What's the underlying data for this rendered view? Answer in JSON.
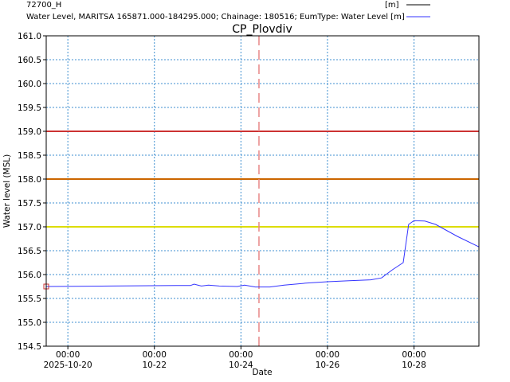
{
  "chart_data": {
    "type": "line",
    "title": "CP_Plovdiv",
    "xlabel": "Date",
    "ylabel": "Water level (MSL)",
    "grid": true,
    "legend_position": "top-right",
    "legend": [
      {
        "label": "72700_H",
        "unit": "[m]",
        "color": "#000000"
      },
      {
        "label": "Water Level, MARITSA 165871.000-184295.000; Chainage: 180516; EumType: Water Level [m]",
        "unit": "",
        "color": "#3333ff"
      }
    ],
    "xlim": [
      "2025-10-19T12:00",
      "2025-10-29T12:00"
    ],
    "ylim": [
      154.5,
      161.0
    ],
    "y_ticks": [
      "154.5",
      "155.0",
      "155.5",
      "156.0",
      "156.5",
      "157.0",
      "157.5",
      "158.0",
      "158.5",
      "159.0",
      "159.5",
      "160.0",
      "160.5",
      "161.0"
    ],
    "x_ticks": [
      {
        "date": "2025-10-20",
        "time": "00:00",
        "label": "2025-10-20"
      },
      {
        "date": "2025-10-22",
        "time": "00:00",
        "label": "10-22"
      },
      {
        "date": "2025-10-24",
        "time": "00:00",
        "label": "10-24"
      },
      {
        "date": "2025-10-26",
        "time": "00:00",
        "label": "10-26"
      },
      {
        "date": "2025-10-28",
        "time": "00:00",
        "label": "10-28"
      }
    ],
    "threshold_lines": [
      {
        "y": 159.0,
        "color": "#cc3333"
      },
      {
        "y": 158.0,
        "color": "#cc6600"
      },
      {
        "y": 157.0,
        "color": "#dddd00"
      }
    ],
    "current_time": "2025-10-24T10:00",
    "observed_points": [
      {
        "x": "2025-10-19T12:00",
        "y": 155.75
      }
    ],
    "series": [
      {
        "name": "Water Level, MARITSA 165871.000-184295.000; Chainage: 180516; EumType: Water Level [m]",
        "color": "#3333ff",
        "points": [
          [
            "2025-10-19T12:00",
            155.75
          ],
          [
            "2025-10-21T00:00",
            155.76
          ],
          [
            "2025-10-22T12:00",
            155.77
          ],
          [
            "2025-10-22T20:00",
            155.77
          ],
          [
            "2025-10-22T22:00",
            155.8
          ],
          [
            "2025-10-23T02:00",
            155.76
          ],
          [
            "2025-10-23T06:00",
            155.78
          ],
          [
            "2025-10-23T12:00",
            155.76
          ],
          [
            "2025-10-23T22:00",
            155.75
          ],
          [
            "2025-10-24T02:00",
            155.78
          ],
          [
            "2025-10-24T08:00",
            155.74
          ],
          [
            "2025-10-24T16:00",
            155.74
          ],
          [
            "2025-10-25T00:00",
            155.78
          ],
          [
            "2025-10-25T12:00",
            155.82
          ],
          [
            "2025-10-26T00:00",
            155.85
          ],
          [
            "2025-10-26T12:00",
            155.87
          ],
          [
            "2025-10-27T00:00",
            155.89
          ],
          [
            "2025-10-27T06:00",
            155.93
          ],
          [
            "2025-10-27T12:00",
            156.1
          ],
          [
            "2025-10-27T18:00",
            156.25
          ],
          [
            "2025-10-27T21:00",
            157.05
          ],
          [
            "2025-10-28T00:00",
            157.13
          ],
          [
            "2025-10-28T06:00",
            157.12
          ],
          [
            "2025-10-28T12:00",
            157.05
          ],
          [
            "2025-10-29T00:00",
            156.8
          ],
          [
            "2025-10-29T12:00",
            156.58
          ]
        ]
      }
    ]
  }
}
